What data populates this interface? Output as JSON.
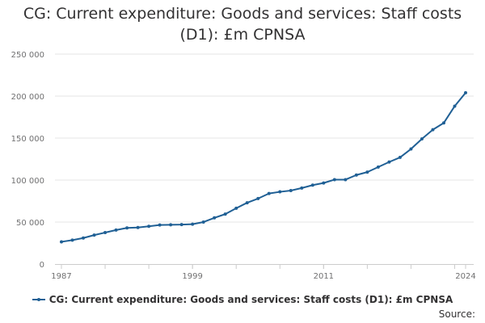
{
  "chart_data": {
    "type": "line",
    "title_lines": [
      "CG: Current expenditure: Goods and services: Staff costs",
      "(D1): £m CPNSA"
    ],
    "xlabel": "",
    "ylabel": "",
    "x_tick_labels": [
      "1987",
      "1999",
      "2011",
      "2024"
    ],
    "x_ticks": [
      1987,
      1999,
      2011,
      2024
    ],
    "xlim": [
      1987,
      2024
    ],
    "ylim": [
      0,
      250000
    ],
    "y_ticks": [
      0,
      50000,
      100000,
      150000,
      200000,
      250000
    ],
    "y_tick_labels": [
      "0",
      "50 000",
      "100 000",
      "150 000",
      "200 000",
      "250 000"
    ],
    "grid": true,
    "legend_position": "bottom",
    "series": [
      {
        "name": "CG: Current expenditure: Goods and services: Staff costs (D1): £m CPNSA",
        "color": "#206095",
        "x": [
          1987,
          1988,
          1989,
          1990,
          1991,
          1992,
          1993,
          1994,
          1995,
          1996,
          1997,
          1998,
          1999,
          2000,
          2001,
          2002,
          2003,
          2004,
          2005,
          2006,
          2007,
          2008,
          2009,
          2010,
          2011,
          2012,
          2013,
          2014,
          2015,
          2016,
          2017,
          2018,
          2019,
          2020,
          2021,
          2022,
          2023,
          2024
        ],
        "values": [
          26500,
          28500,
          31000,
          34500,
          37500,
          40500,
          43000,
          43500,
          45000,
          46500,
          46800,
          47000,
          47500,
          50000,
          55000,
          59500,
          66500,
          73000,
          78000,
          84000,
          86000,
          87500,
          90500,
          94000,
          96500,
          100500,
          100500,
          106000,
          109500,
          115500,
          121500,
          127000,
          137000,
          149000,
          160000,
          168000,
          188000,
          204000
        ]
      }
    ]
  },
  "footer": {
    "source_label": "Source:"
  }
}
